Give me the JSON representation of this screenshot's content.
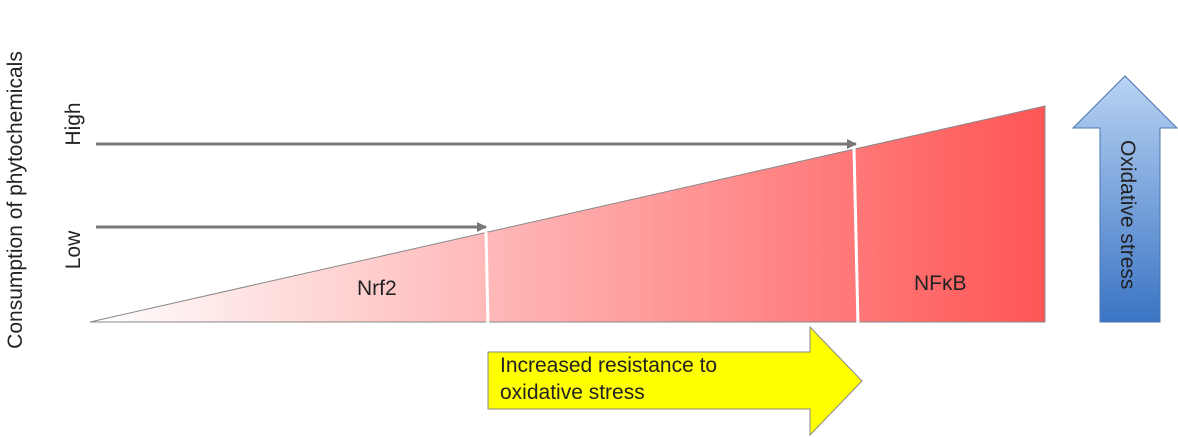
{
  "y_axis_label": "Consumption of phytochemicals",
  "levels": {
    "high": "High",
    "low": "Low"
  },
  "regions": {
    "left": "Nrf2",
    "right": "NFκB"
  },
  "right_arrow": "Oxidative stress",
  "bottom_arrow": {
    "line1": "Increased resistance to",
    "line2": "oxidative stress"
  }
}
